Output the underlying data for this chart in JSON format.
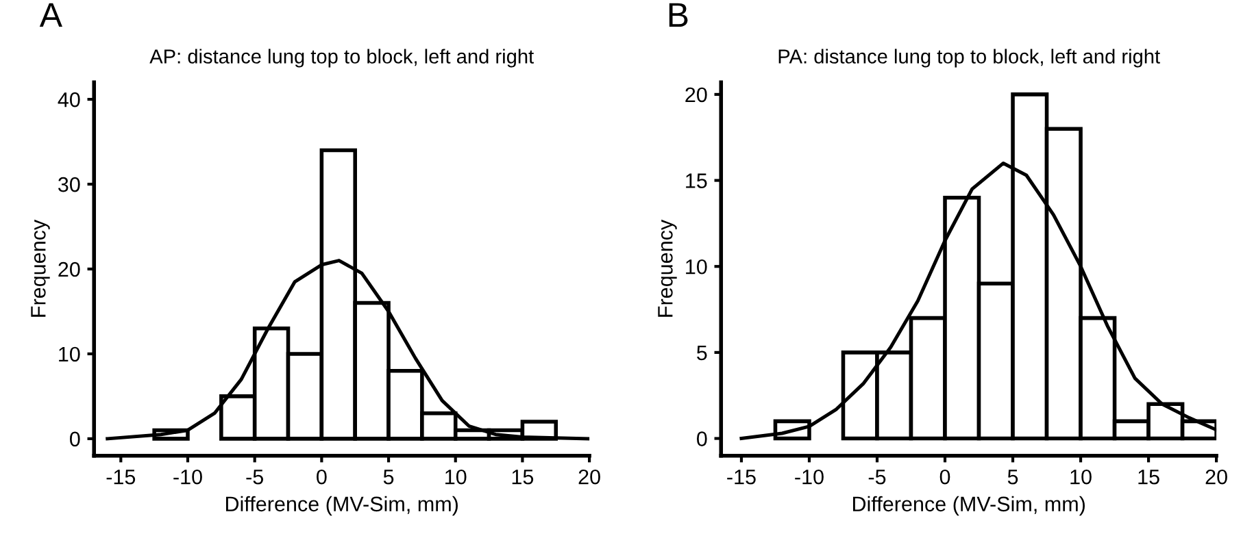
{
  "chart_data": [
    {
      "type": "histogram",
      "title": "AP: distance lung top to block, left and right",
      "xlabel": "Difference (MV-Sim, mm)",
      "ylabel": "Frequency",
      "annotations": [
        "A"
      ],
      "bins": [
        -12.5,
        -10,
        -7.5,
        -5,
        -2.5,
        0,
        2.5,
        5,
        7.5,
        10,
        12.5,
        15,
        17.5
      ],
      "values": [
        1,
        0,
        5,
        13,
        10,
        34,
        16,
        8,
        3,
        1,
        1,
        2
      ],
      "color": "#ffffff",
      "series": [
        {
          "type": "line",
          "color": "#000000",
          "x": [
            -16,
            -12,
            -10,
            -8,
            -6,
            -4,
            -2,
            0,
            1.3,
            3,
            5,
            7,
            9,
            11,
            13,
            15,
            20
          ],
          "values": [
            0,
            0.5,
            1,
            3,
            7,
            13,
            18.5,
            20.5,
            21,
            19.5,
            15,
            9.5,
            4.5,
            1.5,
            0.5,
            0.2,
            0
          ]
        }
      ],
      "xlim": [
        -17,
        20
      ],
      "xticks": [
        -15,
        -10,
        -5,
        0,
        5,
        10,
        15,
        20
      ],
      "ylim": [
        -2,
        42
      ],
      "yticks": [
        0,
        10,
        20,
        30,
        40
      ],
      "grid": false,
      "legend": false
    },
    {
      "type": "histogram",
      "title": "PA: distance lung top to block, left and right",
      "xlabel": "Difference (MV-Sim, mm)",
      "ylabel": "Frequency",
      "annotations": [
        "B"
      ],
      "bins": [
        -12.5,
        -10,
        -7.5,
        -5,
        -2.5,
        0,
        2.5,
        5,
        7.5,
        10,
        12.5,
        15,
        17.5,
        20
      ],
      "values": [
        1,
        0,
        5,
        5,
        7,
        14,
        9,
        20,
        18,
        7,
        1,
        2,
        1
      ],
      "color": "#ffffff",
      "series": [
        {
          "type": "line",
          "color": "#000000",
          "x": [
            -15,
            -12,
            -10,
            -8,
            -6,
            -4,
            -2,
            0,
            2,
            4.3,
            6,
            8,
            10,
            12,
            14,
            16,
            18,
            20
          ],
          "values": [
            0,
            0.3,
            0.7,
            1.7,
            3.2,
            5.3,
            8,
            11.5,
            14.5,
            16,
            15.3,
            13,
            10,
            6.5,
            3.5,
            2,
            1.2,
            0.5
          ]
        }
      ],
      "xlim": [
        -16.5,
        20
      ],
      "xticks": [
        -15,
        -10,
        -5,
        0,
        5,
        10,
        15,
        20
      ],
      "ylim": [
        -1,
        20.7
      ],
      "yticks": [
        0,
        5,
        10,
        15,
        20
      ],
      "grid": false,
      "legend": false
    }
  ]
}
